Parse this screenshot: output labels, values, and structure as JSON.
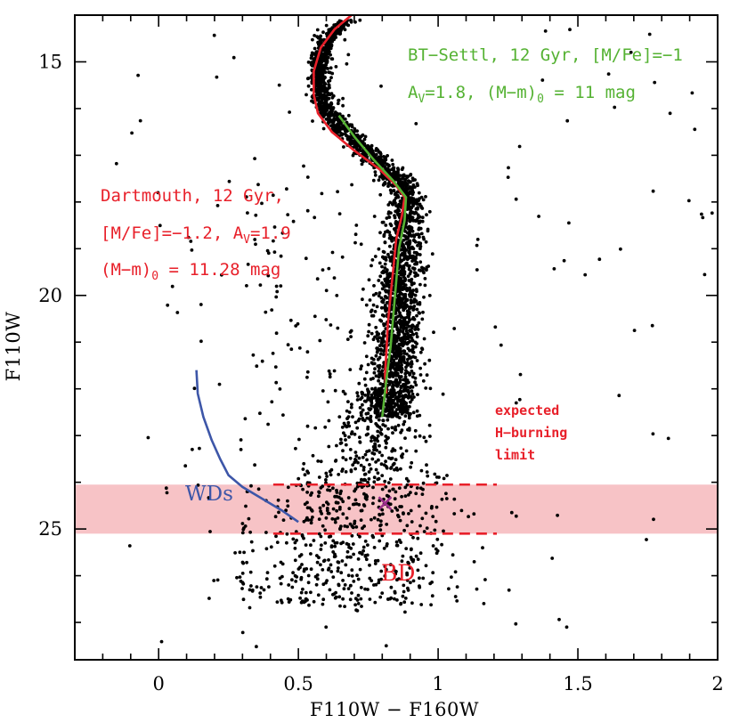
{
  "chart_data": {
    "type": "scatter",
    "xlabel": "F110W − F160W",
    "ylabel": "F110W",
    "xlim": [
      -0.3,
      2.0
    ],
    "ylim": [
      27.8,
      14.0
    ],
    "y_inverted": true,
    "grid": false,
    "x_ticks": [
      {
        "value": 0,
        "label": "0"
      },
      {
        "value": 0.5,
        "label": "0.5"
      },
      {
        "value": 1,
        "label": "1"
      },
      {
        "value": 1.5,
        "label": "1.5"
      },
      {
        "value": 2,
        "label": "2"
      }
    ],
    "y_ticks": [
      {
        "value": 15,
        "label": "15"
      },
      {
        "value": 20,
        "label": "20"
      },
      {
        "value": 25,
        "label": "25"
      }
    ],
    "series": [
      {
        "name": "Dartmouth, 12 Gyr, [M/Fe]=−1.2, Av=1.9, (M−m)0 = 11.28 mag",
        "color": "#e8202a",
        "style": "line",
        "points": [
          [
            0.69,
            14.0
          ],
          [
            0.63,
            14.3
          ],
          [
            0.58,
            14.7
          ],
          [
            0.555,
            15.2
          ],
          [
            0.555,
            15.7
          ],
          [
            0.57,
            16.1
          ],
          [
            0.62,
            16.5
          ],
          [
            0.7,
            16.9
          ],
          [
            0.79,
            17.3
          ],
          [
            0.85,
            17.65
          ],
          [
            0.88,
            17.9
          ],
          [
            0.87,
            18.3
          ],
          [
            0.85,
            18.8
          ],
          [
            0.84,
            19.4
          ],
          [
            0.83,
            20.0
          ],
          [
            0.82,
            20.6
          ],
          [
            0.815,
            21.2
          ],
          [
            0.81,
            21.7
          ],
          [
            0.815,
            22.1
          ]
        ]
      },
      {
        "name": "BT-Settl, 12 Gyr, [M/Fe]=−1, Av=1.8, (M−m)0 = 11 mag",
        "color": "#55b233",
        "style": "line",
        "points": [
          [
            0.645,
            16.15
          ],
          [
            0.7,
            16.6
          ],
          [
            0.77,
            17.1
          ],
          [
            0.84,
            17.55
          ],
          [
            0.885,
            17.9
          ],
          [
            0.88,
            18.4
          ],
          [
            0.86,
            19.0
          ],
          [
            0.85,
            19.7
          ],
          [
            0.84,
            20.4
          ],
          [
            0.83,
            21.1
          ],
          [
            0.815,
            21.8
          ],
          [
            0.8,
            22.6
          ]
        ]
      },
      {
        "name": "WDs",
        "color": "#3d56a8",
        "style": "line",
        "points": [
          [
            0.135,
            21.6
          ],
          [
            0.14,
            22.1
          ],
          [
            0.16,
            22.6
          ],
          [
            0.19,
            23.1
          ],
          [
            0.22,
            23.5
          ],
          [
            0.25,
            23.85
          ],
          [
            0.3,
            24.1
          ],
          [
            0.37,
            24.35
          ],
          [
            0.44,
            24.6
          ],
          [
            0.5,
            24.85
          ]
        ]
      },
      {
        "name": "stars",
        "color": "#000000",
        "style": "points",
        "points": []
      }
    ],
    "h_burning_band": {
      "y_range": [
        24.05,
        25.1
      ],
      "color": "#f7c3c6"
    },
    "dashed_box": {
      "x_range": [
        0.41,
        1.21
      ],
      "y_range": [
        24.05,
        25.1
      ],
      "color": "#e8202a"
    },
    "marker": {
      "x": 0.81,
      "y": 24.45,
      "symbol": "x",
      "color": "#9b2e8c"
    },
    "annotations": {
      "dartmouth_line1": "Dartmouth, 12 Gyr,",
      "dartmouth_line2_a": "[M/Fe]=−1.2, A",
      "dartmouth_line2_sub": "V",
      "dartmouth_line2_b": "=1.9",
      "dartmouth_line3_a": "(M−m)",
      "dartmouth_line3_sub": "0",
      "dartmouth_line3_b": " = 11.28 mag",
      "btsettl_line1": "BT−Settl, 12 Gyr, [M/Fe]=−1",
      "btsettl_line2_a": "A",
      "btsettl_line2_sub": "V",
      "btsettl_line2_b": "=1.8, (M−m)",
      "btsettl_line2_sub2": "0",
      "btsettl_line2_c": " = 11 mag",
      "expected_1": "expected",
      "expected_2": "H−burning",
      "expected_3": "limit",
      "wds": "WDs",
      "bd": "BD"
    }
  }
}
